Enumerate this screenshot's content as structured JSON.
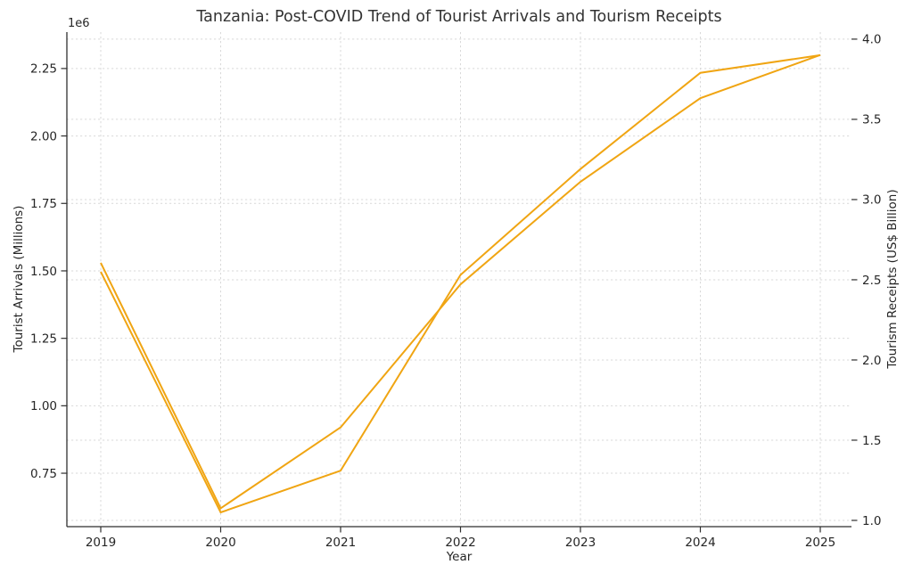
{
  "chart_data": {
    "type": "line",
    "title": "Tanzania: Post-COVID Trend of Tourist Arrivals and Tourism Receipts",
    "xlabel": "Year",
    "offset_label": "1e6",
    "x_years": [
      2019,
      2020,
      2021,
      2022,
      2023,
      2024,
      2025
    ],
    "x_tick_labels": [
      "2019",
      "2020",
      "2021",
      "2022",
      "2023",
      "2024",
      "2025"
    ],
    "series": [
      {
        "name": "Tourist Arrivals",
        "axis": "left",
        "unit": "millions of arrivals",
        "values": [
          1.53,
          0.62,
          0.92,
          1.45,
          1.83,
          2.14,
          2.3
        ],
        "color": "#F0A513"
      },
      {
        "name": "Tourism Receipts",
        "axis": "right",
        "unit": "US$ billion",
        "values": [
          2.55,
          1.05,
          1.31,
          2.53,
          3.19,
          3.79,
          3.9
        ],
        "color": "#F0A513"
      }
    ],
    "left_axis": {
      "label": "Tourist Arrivals (Millions)",
      "scale_offset": "1e6",
      "ticks": [
        0.75,
        1.0,
        1.25,
        1.5,
        1.75,
        2.0,
        2.25
      ],
      "tick_labels": [
        "0.75",
        "1.00",
        "1.25",
        "1.50",
        "1.75",
        "2.00",
        "2.25"
      ],
      "range": [
        0.552,
        2.385
      ]
    },
    "right_axis": {
      "label": "Tourism Receipts (US$ Billion)",
      "ticks": [
        1.0,
        1.5,
        2.0,
        2.5,
        3.0,
        3.5,
        4.0
      ],
      "tick_labels": [
        "1.0",
        "1.5",
        "2.0",
        "2.5",
        "3.0",
        "3.5",
        "4.0"
      ],
      "range": [
        0.961,
        4.044
      ]
    },
    "grid": true,
    "legend": false,
    "styles": {
      "line_color": "#F0A513",
      "grid_color": "#D9D9D9",
      "spine_color": "#2F2F2F",
      "tick_color": "#2F2F2F",
      "text_color": "#262626",
      "title_color": "#333333",
      "background": "#FFFFFF"
    }
  }
}
